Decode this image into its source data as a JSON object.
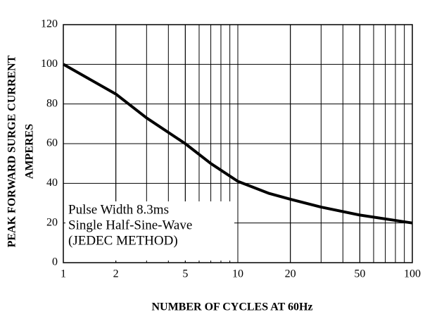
{
  "chart_data": {
    "type": "line",
    "xlabel": "NUMBER OF CYCLES AT 60Hz",
    "ylabel": [
      "PEAK FORWARD SURGE CURRENT",
      "AMPERES"
    ],
    "annotation": [
      "Pulse Width 8.3ms",
      "Single Half-Sine-Wave",
      "(JEDEC METHOD)"
    ],
    "x": [
      1,
      2,
      3,
      5,
      7,
      10,
      15,
      20,
      30,
      50,
      100
    ],
    "values": [
      100,
      85,
      73,
      60,
      50,
      41,
      35,
      32,
      28,
      24,
      20
    ],
    "color": "#000000",
    "xscale": "log",
    "xlim": [
      1,
      100
    ],
    "xticks": [
      1,
      2,
      5,
      10,
      20,
      50,
      100
    ],
    "ylim": [
      0,
      120
    ],
    "yticks": [
      0,
      20,
      40,
      60,
      80,
      100,
      120
    ],
    "grid": true,
    "minor_grid": true
  }
}
